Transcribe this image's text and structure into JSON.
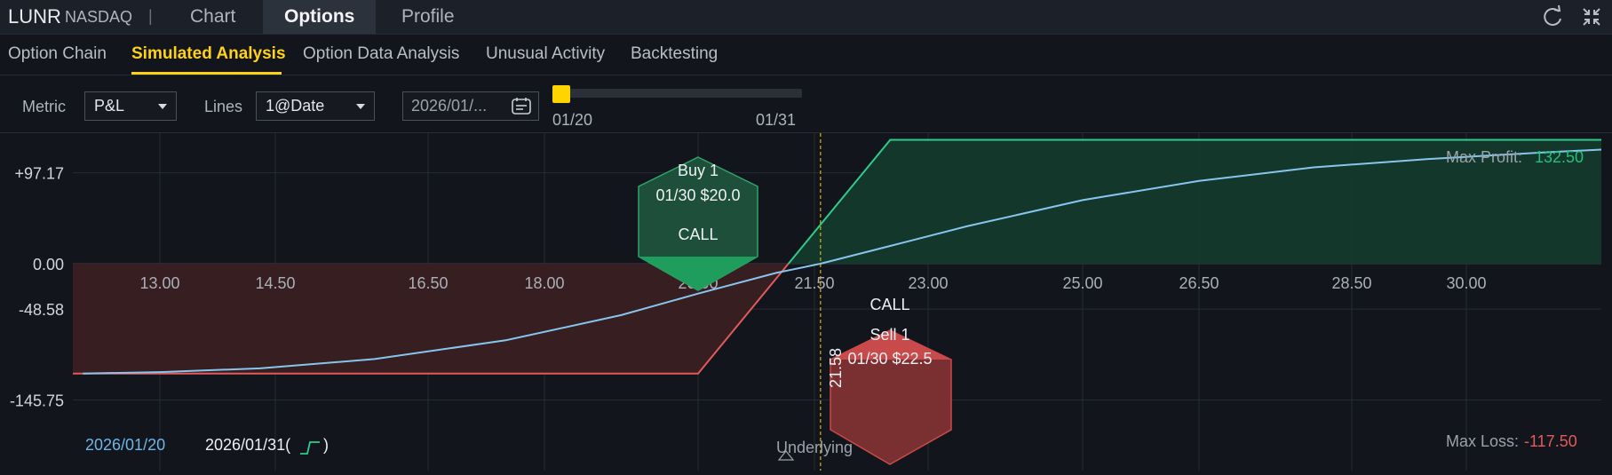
{
  "header": {
    "ticker": "LUNR",
    "exchange": "NASDAQ",
    "separator": "|",
    "tabs": [
      {
        "label": "Chart"
      },
      {
        "label": "Options"
      },
      {
        "label": "Profile"
      }
    ],
    "active_tab": "Options",
    "icons": [
      "refresh-icon",
      "collapse-icon"
    ]
  },
  "subtabs": [
    {
      "label": "Option Chain"
    },
    {
      "label": "Simulated Analysis"
    },
    {
      "label": "Option Data Analysis"
    },
    {
      "label": "Unusual Activity"
    },
    {
      "label": "Backtesting"
    }
  ],
  "active_subtab": "Simulated Analysis",
  "controls": {
    "metric_label": "Metric",
    "metric_value": "P&L",
    "lines_label": "Lines",
    "lines_value": "1@Date",
    "date_value": "2026/01/...",
    "slider_start": "01/20",
    "slider_end": "01/31",
    "slider_position": 0
  },
  "chart_data": {
    "type": "line",
    "y_ticks": [
      "+97.17",
      "0.00",
      "-48.58",
      "-145.75"
    ],
    "x_ticks": [
      "13.00",
      "14.50",
      "16.50",
      "18.00",
      "20.00",
      "21.50",
      "23.00",
      "25.00",
      "26.50",
      "28.50",
      "30.00"
    ],
    "y_range": [
      -145.75,
      145.75
    ],
    "series": [
      {
        "name": "2026/01/20",
        "color": "#86c6ee",
        "x": [
          12.0,
          13.0,
          14.3,
          15.8,
          17.5,
          19.0,
          20.0,
          21.0,
          21.58,
          22.5,
          23.5,
          25.0,
          26.5,
          28.0,
          29.5,
          31.0,
          32.0
        ],
        "y": [
          -117.5,
          -116.0,
          -112.0,
          -102.0,
          -82.0,
          -55.0,
          -32.0,
          -10.0,
          0.0,
          19.0,
          40.0,
          68.0,
          88.5,
          103.0,
          112.0,
          119.0,
          122.0
        ]
      },
      {
        "name": "2026/01/31",
        "color": "#2ecc8a",
        "x": [
          12.0,
          20.0,
          22.5,
          32.0
        ],
        "y": [
          -117.5,
          -117.5,
          132.5,
          132.5
        ]
      }
    ],
    "breakeven": "21.58",
    "max_profit_label": "Max Profit:",
    "max_profit": "132.50",
    "max_loss_label": "Max Loss:",
    "max_loss": "-117.50",
    "underlying_label": "Underlying",
    "legend": [
      {
        "label": "2026/01/20",
        "color": "#6fb6e8"
      },
      {
        "label": "2026/01/31(",
        "suffix": ")",
        "color": "#f0f2f5"
      }
    ],
    "legs": [
      {
        "action": "Buy 1",
        "detail": "01/30 $20.0",
        "type": "CALL",
        "color": "#1f9d5c"
      },
      {
        "action": "Sell 1",
        "detail": "01/30 $22.5",
        "type": "CALL",
        "color": "#c94a4a"
      }
    ]
  },
  "colors": {
    "accent": "#ffd21a",
    "profit": "#22c07a",
    "loss": "#e25a5a"
  }
}
